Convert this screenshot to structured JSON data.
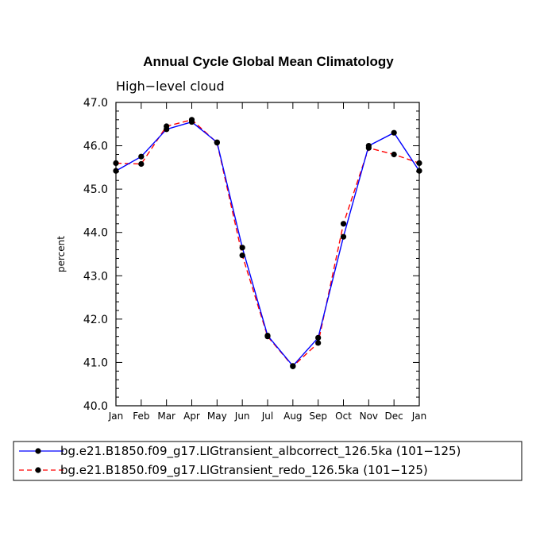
{
  "chart_data": {
    "type": "line",
    "title": "Annual Cycle Global Mean Climatology",
    "subtitle": "High−level cloud",
    "xlabel": "",
    "ylabel": "percent",
    "ylim": [
      40.0,
      47.0
    ],
    "y_ticks": [
      "40.0",
      "41.0",
      "42.0",
      "43.0",
      "44.0",
      "45.0",
      "46.0",
      "47.0"
    ],
    "categories": [
      "Jan",
      "Feb",
      "Mar",
      "Apr",
      "May",
      "Jun",
      "Jul",
      "Aug",
      "Sep",
      "Oct",
      "Nov",
      "Dec",
      "Jan"
    ],
    "series": [
      {
        "name": "bg.e21.B1850.f09_g17.LIGtransient_albcorrect_126.5ka (101−125)",
        "color": "#0000ff",
        "dash": "solid",
        "values": [
          45.42,
          45.75,
          46.38,
          46.55,
          46.08,
          43.65,
          41.62,
          40.92,
          41.57,
          43.9,
          46.0,
          46.3,
          45.42
        ]
      },
      {
        "name": "bg.e21.B1850.f09_g17.LIGtransient_redo_126.5ka (101−125)",
        "color": "#ff0000",
        "dash": "dashed",
        "values": [
          45.6,
          45.58,
          46.45,
          46.6,
          46.07,
          43.47,
          41.6,
          40.91,
          41.45,
          44.2,
          45.95,
          45.8,
          45.6
        ]
      }
    ],
    "legend_position": "bottom"
  }
}
